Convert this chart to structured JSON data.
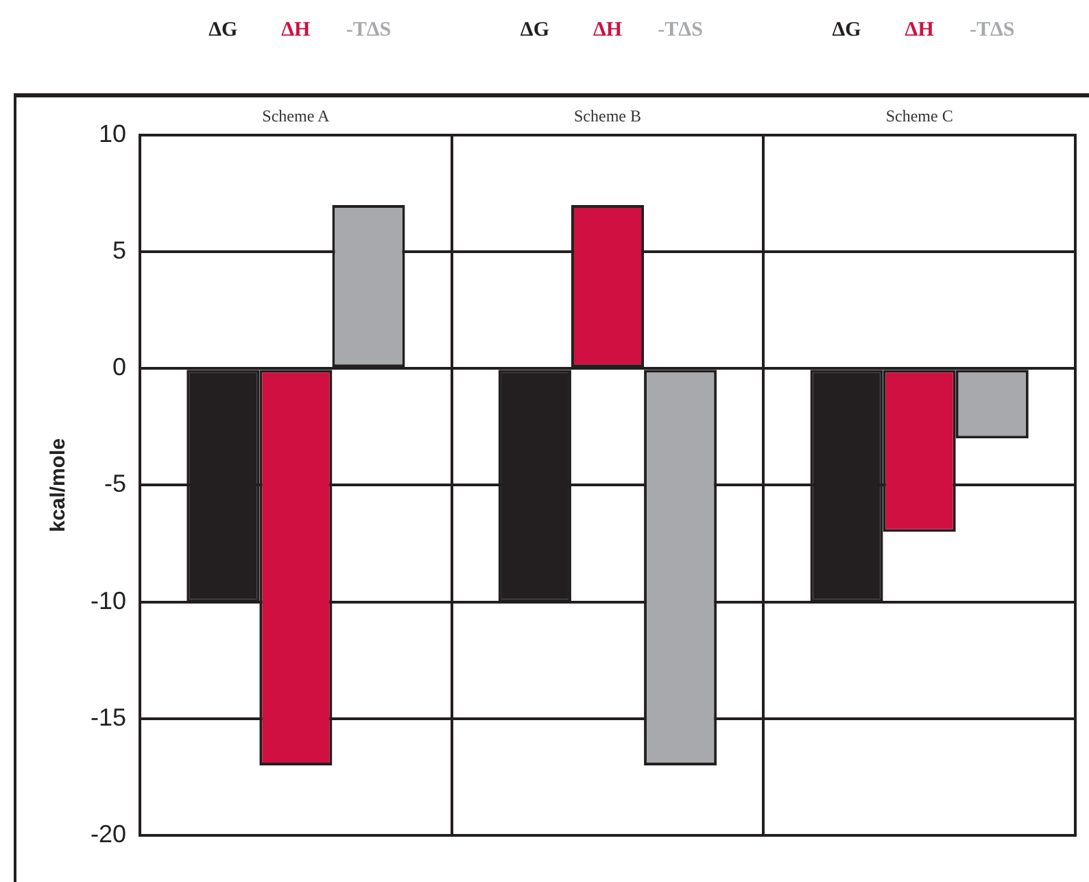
{
  "chart_data": {
    "type": "bar",
    "ylabel": "kcal/mole",
    "categories": [
      "Scheme A",
      "Scheme B",
      "Scheme C"
    ],
    "series": [
      {
        "name": "ΔG",
        "color": "#231f20",
        "values": [
          -10,
          -10,
          -10
        ]
      },
      {
        "name": "ΔH",
        "color": "#d01040",
        "values": [
          -17,
          7,
          -7
        ]
      },
      {
        "name": "-TΔS",
        "color": "#a7a9ac",
        "values": [
          7,
          -17,
          -3
        ]
      }
    ],
    "ylim": [
      -20,
      10
    ],
    "yticks": [
      -20,
      -15,
      -10,
      -5,
      0,
      5,
      10
    ],
    "grid": true,
    "legend": false
  }
}
